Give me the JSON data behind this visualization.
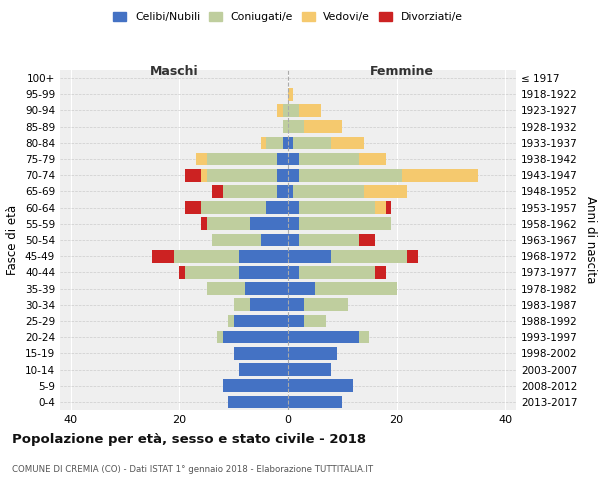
{
  "age_groups": [
    "100+",
    "95-99",
    "90-94",
    "85-89",
    "80-84",
    "75-79",
    "70-74",
    "65-69",
    "60-64",
    "55-59",
    "50-54",
    "45-49",
    "40-44",
    "35-39",
    "30-34",
    "25-29",
    "20-24",
    "15-19",
    "10-14",
    "5-9",
    "0-4"
  ],
  "birth_years": [
    "≤ 1917",
    "1918-1922",
    "1923-1927",
    "1928-1932",
    "1933-1937",
    "1938-1942",
    "1943-1947",
    "1948-1952",
    "1953-1957",
    "1958-1962",
    "1963-1967",
    "1968-1972",
    "1973-1977",
    "1978-1982",
    "1983-1987",
    "1988-1992",
    "1993-1997",
    "1998-2002",
    "2003-2007",
    "2008-2012",
    "2013-2017"
  ],
  "maschi": {
    "celibi": [
      0,
      0,
      0,
      0,
      1,
      2,
      2,
      2,
      4,
      7,
      5,
      9,
      9,
      8,
      7,
      10,
      12,
      10,
      9,
      12,
      11
    ],
    "coniugati": [
      0,
      0,
      1,
      1,
      3,
      13,
      13,
      10,
      12,
      8,
      9,
      12,
      10,
      7,
      3,
      1,
      1,
      0,
      0,
      0,
      0
    ],
    "vedovi": [
      0,
      0,
      1,
      0,
      1,
      2,
      1,
      0,
      0,
      0,
      0,
      0,
      0,
      0,
      0,
      0,
      0,
      0,
      0,
      0,
      0
    ],
    "divorziati": [
      0,
      0,
      0,
      0,
      0,
      0,
      3,
      2,
      3,
      1,
      0,
      4,
      1,
      0,
      0,
      0,
      0,
      0,
      0,
      0,
      0
    ]
  },
  "femmine": {
    "nubili": [
      0,
      0,
      0,
      0,
      1,
      2,
      2,
      1,
      2,
      2,
      2,
      8,
      2,
      5,
      3,
      3,
      13,
      9,
      8,
      12,
      10
    ],
    "coniugate": [
      0,
      0,
      2,
      3,
      7,
      11,
      19,
      13,
      14,
      17,
      11,
      14,
      14,
      15,
      8,
      4,
      2,
      0,
      0,
      0,
      0
    ],
    "vedove": [
      0,
      1,
      4,
      7,
      6,
      5,
      14,
      8,
      2,
      0,
      0,
      0,
      0,
      0,
      0,
      0,
      0,
      0,
      0,
      0,
      0
    ],
    "divorziate": [
      0,
      0,
      0,
      0,
      0,
      0,
      0,
      0,
      1,
      0,
      3,
      2,
      2,
      0,
      0,
      0,
      0,
      0,
      0,
      0,
      0
    ]
  },
  "colors": {
    "celibi": "#4472C4",
    "coniugati": "#BFCE9E",
    "vedovi": "#F5C96E",
    "divorziati": "#CC2222"
  },
  "xlim": [
    -42,
    42
  ],
  "xticks": [
    -40,
    -20,
    0,
    20,
    40
  ],
  "xticklabels": [
    "40",
    "20",
    "0",
    "20",
    "40"
  ],
  "title": "Popolazione per età, sesso e stato civile - 2018",
  "subtitle": "COMUNE DI CREMIA (CO) - Dati ISTAT 1° gennaio 2018 - Elaborazione TUTTITALIA.IT",
  "ylabel_left": "Fasce di età",
  "ylabel_right": "Anni di nascita",
  "label_maschi": "Maschi",
  "label_femmine": "Femmine",
  "legend_labels": [
    "Celibi/Nubili",
    "Coniugati/e",
    "Vedovi/e",
    "Divorziati/e"
  ],
  "background_color": "#efefef"
}
